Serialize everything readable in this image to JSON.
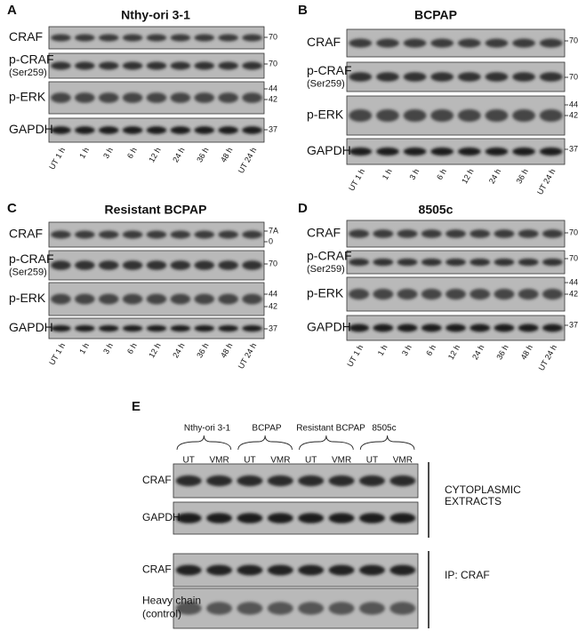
{
  "panels": [
    {
      "letter": "A",
      "title": "Nthy-ori  3-1",
      "rows": [
        {
          "label": "CRAF",
          "markers": [
            "70"
          ]
        },
        {
          "label": "p-CRAF",
          "sublabel": "(Ser259)",
          "markers": [
            "70"
          ]
        },
        {
          "label": "p-ERK",
          "markers": [
            "44",
            "42"
          ]
        },
        {
          "label": "GAPDH",
          "markers": [
            "37"
          ]
        }
      ],
      "lanes": [
        "UT 1 h",
        "1 h",
        "3 h",
        "6 h",
        "12 h",
        "24 h",
        "36 h",
        "48 h",
        "UT 24 h"
      ]
    },
    {
      "letter": "B",
      "title": "BCPAP",
      "rows": [
        {
          "label": "CRAF",
          "markers": [
            "70"
          ]
        },
        {
          "label": "p-CRAF",
          "sublabel": "(Ser259)",
          "markers": [
            "70"
          ]
        },
        {
          "label": "p-ERK",
          "markers": [
            "44",
            "42"
          ]
        },
        {
          "label": "GAPDH",
          "markers": [
            "37"
          ]
        }
      ],
      "lanes": [
        "UT 1 h",
        "1 h",
        "3 h",
        "6 h",
        "12 h",
        "24 h",
        "36 h",
        "UT 24 h"
      ]
    },
    {
      "letter": "C",
      "title": "Resistant BCPAP",
      "rows": [
        {
          "label": "CRAF",
          "markers": [
            "7A",
            "0"
          ]
        },
        {
          "label": "p-CRAF",
          "sublabel": "(Ser259)",
          "markers": [
            "70"
          ]
        },
        {
          "label": "p-ERK",
          "markers": [
            "44",
            "42"
          ]
        },
        {
          "label": "GAPDH",
          "markers": [
            "37"
          ]
        }
      ],
      "lanes": [
        "UT 1 h",
        "1 h",
        "3 h",
        "6 h",
        "12 h",
        "24 h",
        "36 h",
        "48 h",
        "UT 24 h"
      ]
    },
    {
      "letter": "D",
      "title": "8505c",
      "rows": [
        {
          "label": "CRAF",
          "markers": [
            "70"
          ]
        },
        {
          "label": "p-CRAF",
          "sublabel": "(Ser259)",
          "markers": [
            "70"
          ]
        },
        {
          "label": "p-ERK",
          "markers": [
            "44",
            "42"
          ]
        },
        {
          "label": "GAPDH",
          "markers": [
            "37"
          ]
        }
      ],
      "lanes": [
        "UT 1 h",
        "1 h",
        "3 h",
        "6 h",
        "12 h",
        "24 h",
        "36 h",
        "48 h",
        "UT 24 h"
      ]
    }
  ],
  "panel_e": {
    "letter": "E",
    "groups": [
      "Nthy-ori 3-1",
      "BCPAP",
      "Resistant BCPAP",
      "8505c"
    ],
    "lanes": [
      "UT",
      "VMR",
      "UT",
      "VMR",
      "UT",
      "VMR",
      "UT",
      "VMR"
    ],
    "blots": [
      {
        "label": "CRAF"
      },
      {
        "label": "GAPDH"
      },
      {
        "label": "CRAF"
      },
      {
        "label": "Heavy chain",
        "sublabel": "(control)"
      }
    ],
    "sections": [
      {
        "lines": [
          "CYTOPLASMIC",
          "EXTRACTS"
        ]
      },
      {
        "lines": [
          "IP: CRAF"
        ]
      }
    ]
  }
}
